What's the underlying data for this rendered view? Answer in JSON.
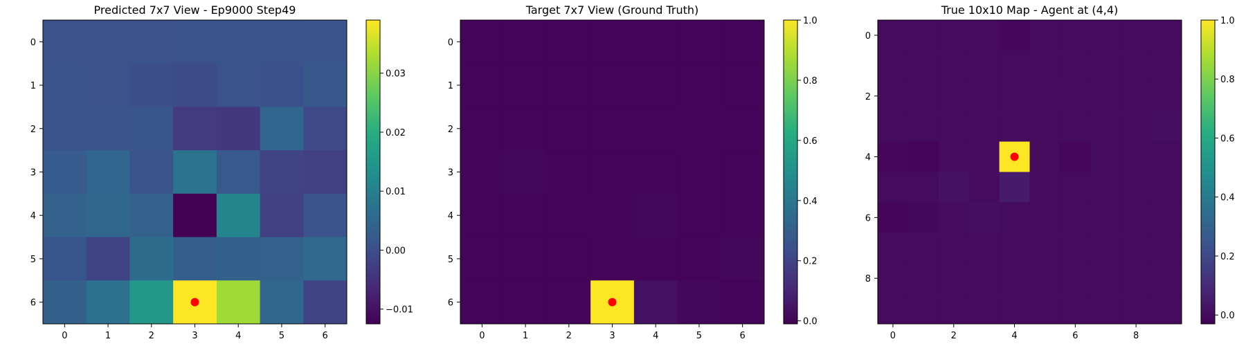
{
  "chart_data": [
    {
      "type": "heatmap",
      "title": "Predicted 7x7 View - Ep9000 Step49",
      "xlabel": "",
      "ylabel": "",
      "x_ticks": [
        "0",
        "1",
        "2",
        "3",
        "4",
        "5",
        "6"
      ],
      "y_ticks": [
        "0",
        "1",
        "2",
        "3",
        "4",
        "5",
        "6"
      ],
      "colormap": "viridis",
      "vmin": -0.0125,
      "vmax": 0.039,
      "colorbar_ticks": [
        {
          "value": -0.01,
          "label": "−0.01"
        },
        {
          "value": 0.0,
          "label": "0.00"
        },
        {
          "value": 0.01,
          "label": "0.01"
        },
        {
          "value": 0.02,
          "label": "0.02"
        },
        {
          "value": 0.03,
          "label": "0.03"
        }
      ],
      "values": [
        [
          0.0005,
          0.0005,
          0.0005,
          0.0007,
          0.0007,
          0.0009,
          0.0013
        ],
        [
          0.0008,
          0.0005,
          0.0,
          -0.0005,
          0.0008,
          0.0003,
          0.0018
        ],
        [
          0.0008,
          0.001,
          0.0014,
          -0.0035,
          -0.004,
          0.0045,
          -0.001
        ],
        [
          0.0025,
          0.0045,
          0.001,
          0.0075,
          0.002,
          -0.002,
          -0.0025
        ],
        [
          0.004,
          0.005,
          0.004,
          -0.0125,
          0.011,
          -0.0025,
          0.001
        ],
        [
          0.0015,
          -0.002,
          0.006,
          0.003,
          0.0035,
          0.004,
          0.0055
        ],
        [
          0.0035,
          0.007,
          0.015,
          0.039,
          0.032,
          0.005,
          -0.002
        ]
      ],
      "marker": {
        "col": 3,
        "row": 6,
        "color": "#ff0000"
      }
    },
    {
      "type": "heatmap",
      "title": "Target 7x7 View (Ground Truth)",
      "xlabel": "",
      "ylabel": "",
      "x_ticks": [
        "0",
        "1",
        "2",
        "3",
        "4",
        "5",
        "6"
      ],
      "y_ticks": [
        "0",
        "1",
        "2",
        "3",
        "4",
        "5",
        "6"
      ],
      "colormap": "viridis",
      "vmin": -0.01,
      "vmax": 1.0,
      "colorbar_ticks": [
        {
          "value": 0.0,
          "label": "0.0"
        },
        {
          "value": 0.2,
          "label": "0.2"
        },
        {
          "value": 0.4,
          "label": "0.4"
        },
        {
          "value": 0.6,
          "label": "0.6"
        },
        {
          "value": 0.8,
          "label": "0.8"
        },
        {
          "value": 1.0,
          "label": "1.0"
        }
      ],
      "values": [
        [
          0.0,
          0.0,
          0.0,
          0.0,
          0.0,
          0.0,
          0.0
        ],
        [
          0.0,
          0.0,
          0.0,
          0.0,
          0.0,
          0.0,
          0.0
        ],
        [
          0.0,
          0.0,
          0.0,
          0.0,
          0.0,
          0.005,
          0.0
        ],
        [
          0.005,
          0.01,
          0.0,
          0.0,
          0.0,
          0.0,
          0.0
        ],
        [
          0.0,
          0.0,
          0.0,
          0.005,
          0.01,
          0.0,
          0.0
        ],
        [
          0.0,
          0.0,
          0.0,
          0.0,
          0.0,
          0.0,
          0.01
        ],
        [
          0.0,
          0.0,
          0.0,
          1.0,
          0.04,
          0.01,
          0.0
        ]
      ],
      "marker": {
        "col": 3,
        "row": 6,
        "color": "#ff0000"
      }
    },
    {
      "type": "heatmap",
      "title": "True 10x10 Map - Agent at (4,4)",
      "xlabel": "",
      "ylabel": "",
      "x_ticks": [
        "0",
        "2",
        "4",
        "6",
        "8"
      ],
      "y_ticks": [
        "0",
        "2",
        "4",
        "6",
        "8"
      ],
      "colormap": "viridis",
      "vmin": -0.03,
      "vmax": 1.0,
      "colorbar_ticks": [
        {
          "value": 0.0,
          "label": "0.0"
        },
        {
          "value": 0.2,
          "label": "0.2"
        },
        {
          "value": 0.4,
          "label": "0.4"
        },
        {
          "value": 0.6,
          "label": "0.6"
        },
        {
          "value": 0.8,
          "label": "0.8"
        },
        {
          "value": 1.0,
          "label": "1.0"
        }
      ],
      "values": [
        [
          0.0,
          0.0,
          0.0,
          0.0,
          -0.01,
          0.0,
          0.0,
          0.0,
          0.0,
          0.0
        ],
        [
          0.0,
          0.0,
          0.0,
          0.0,
          0.0,
          0.0,
          0.0,
          0.0,
          0.0,
          0.0
        ],
        [
          0.0,
          0.0,
          0.0,
          0.0,
          0.0,
          0.005,
          0.0,
          0.0,
          0.0,
          0.0
        ],
        [
          0.0,
          0.0,
          0.0,
          0.0,
          0.0,
          0.0,
          0.0,
          0.0,
          0.0,
          0.01
        ],
        [
          -0.01,
          -0.02,
          0.0,
          0.0,
          1.0,
          0.0,
          -0.01,
          0.0,
          0.0,
          0.0
        ],
        [
          0.0,
          0.0,
          0.02,
          0.0,
          0.05,
          0.0,
          0.0,
          0.0,
          0.0,
          0.0
        ],
        [
          -0.015,
          -0.005,
          0.0,
          0.01,
          0.0,
          0.0,
          0.0,
          0.0,
          0.0,
          0.0
        ],
        [
          0.005,
          0.0,
          0.0,
          0.0,
          0.0,
          0.0,
          0.0,
          0.0,
          0.0,
          0.0
        ],
        [
          0.0,
          0.0,
          0.0,
          0.0,
          0.0,
          0.0,
          0.0,
          0.0,
          0.0,
          0.0
        ],
        [
          0.0,
          0.0,
          0.0,
          0.0,
          0.0,
          0.0,
          0.0,
          0.0,
          0.0,
          0.0
        ]
      ],
      "marker": {
        "col": 4,
        "row": 4,
        "color": "#ff0000"
      }
    }
  ]
}
